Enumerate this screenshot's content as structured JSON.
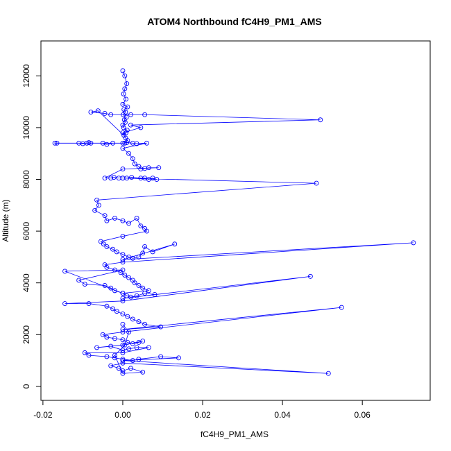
{
  "chart_data": {
    "type": "scatter",
    "title": "ATOM4 Northbound fC4H9_PM1_AMS",
    "xlabel": "fC4H9_PM1_AMS",
    "ylabel": "Altitude (m)",
    "xlim": [
      -0.0205,
      0.077
    ],
    "ylim": [
      -540,
      13350
    ],
    "x_ticks": [
      {
        "value": -0.02,
        "label": "-0.02"
      },
      {
        "value": 0.0,
        "label": "0.00"
      },
      {
        "value": 0.02,
        "label": "0.02"
      },
      {
        "value": 0.04,
        "label": "0.04"
      },
      {
        "value": 0.06,
        "label": "0.06"
      }
    ],
    "y_ticks": [
      {
        "value": 0,
        "label": "0"
      },
      {
        "value": 2000,
        "label": "2000"
      },
      {
        "value": 4000,
        "label": "4000"
      },
      {
        "value": 6000,
        "label": "6000"
      },
      {
        "value": 8000,
        "label": "8000"
      },
      {
        "value": 10000,
        "label": "10000"
      },
      {
        "value": 12000,
        "label": "12000"
      }
    ],
    "grid": false,
    "legend": "none",
    "marker": "open-circle",
    "connected": true,
    "color": "#0000ff",
    "series": [
      {
        "x": [
          0.0,
          0.0005,
          0.001,
          0.0005,
          0.0002,
          0.0008,
          0.0,
          0.0012,
          0.0003,
          0.0007,
          0.0001,
          0.0009,
          0.0004,
          0.0006,
          0.0,
          0.0002,
          0.0011,
          0.0008,
          0.0003,
          -0.0062,
          -0.008,
          -0.0045,
          -0.003,
          0.002,
          0.0055,
          0.0495,
          0.002,
          0.0045,
          0.0,
          0.0007,
          0.0012,
          0.0005,
          -0.017,
          -0.0165,
          -0.011,
          -0.01,
          -0.009,
          -0.0085,
          -0.008,
          -0.005,
          -0.004,
          -0.0025,
          0.0,
          0.001,
          0.0025,
          0.0035,
          0.006,
          0.0,
          0.0015,
          0.0025,
          0.003,
          0.004,
          0.0045,
          0.0055,
          0.0065,
          0.009,
          0.0,
          -0.0045,
          -0.003,
          -0.0022,
          -0.001,
          0.0,
          0.001,
          0.0022,
          0.0045,
          0.0055,
          0.0065,
          0.0075,
          0.0085,
          0.0,
          0.0485,
          -0.0065,
          -0.006,
          -0.007,
          -0.0045,
          -0.004,
          -0.002,
          0.0,
          0.0015,
          0.0035,
          0.0045,
          0.0055,
          0.006,
          0.0,
          -0.0055,
          -0.0048,
          -0.004,
          -0.0025,
          -0.0015,
          0.0,
          0.0015,
          0.0025,
          0.004,
          0.005,
          0.0055,
          0.0075,
          0.013,
          0.0,
          0.0728,
          0.0,
          -0.0045,
          -0.004,
          -0.002,
          -0.0005,
          0.0005,
          0.0015,
          0.0025,
          0.003,
          0.004,
          0.005,
          0.0065,
          0.0,
          -0.0145,
          0.0,
          -0.011,
          -0.0095,
          -0.0045,
          -0.003,
          -0.002,
          0.0,
          0.001,
          0.002,
          0.0035,
          0.0055,
          0.008,
          0.0,
          0.047,
          0.0,
          -0.0145,
          -0.0085,
          -0.004,
          -0.0025,
          -0.0015,
          0.0,
          0.0012,
          0.0025,
          0.004,
          0.0055,
          0.0095,
          0.0,
          0.0548,
          0.0,
          -0.005,
          -0.004,
          -0.002,
          0.0,
          0.0012,
          0.0025,
          0.004,
          0.005,
          0.0,
          -0.0065,
          -0.003,
          0.0,
          0.0015,
          0.0035,
          0.0065,
          0.0,
          -0.0095,
          -0.0085,
          -0.004,
          -0.002,
          0.0,
          0.0025,
          0.004,
          0.0095,
          0.014,
          0.0,
          0.0515,
          0.0,
          -0.003,
          -0.001,
          0.0,
          0.002,
          0.005,
          0.0,
          -0.002,
          0.0005,
          0.0015,
          0.0
        ],
        "y": [
          12200,
          12000,
          11700,
          11500,
          11300,
          11100,
          10900,
          10800,
          10700,
          10600,
          10500,
          10400,
          10300,
          10200,
          10100,
          10000,
          9900,
          9800,
          9700,
          10650,
          10600,
          10550,
          10500,
          10500,
          10500,
          10300,
          10100,
          10000,
          9800,
          9600,
          9500,
          9400,
          9400,
          9400,
          9400,
          9380,
          9400,
          9420,
          9400,
          9400,
          9350,
          9400,
          9400,
          9420,
          9400,
          9380,
          9400,
          9200,
          9000,
          8800,
          8600,
          8500,
          8400,
          8420,
          8450,
          8450,
          8400,
          8050,
          8050,
          8080,
          8050,
          8050,
          8050,
          8080,
          8050,
          8050,
          8000,
          8050,
          8000,
          8050,
          7850,
          7200,
          7000,
          6800,
          6600,
          6400,
          6500,
          6400,
          6300,
          6500,
          6200,
          6100,
          6000,
          5800,
          5600,
          5500,
          5400,
          5300,
          5200,
          5100,
          5000,
          4950,
          5000,
          5150,
          5400,
          5200,
          5500,
          4900,
          5550,
          4800,
          4700,
          4600,
          4500,
          4400,
          4300,
          4200,
          4100,
          4000,
          3900,
          3800,
          3700,
          3600,
          4450,
          4500,
          4100,
          3950,
          3900,
          3800,
          3700,
          3600,
          3500,
          3450,
          3500,
          3600,
          3550,
          3400,
          4250,
          3300,
          3200,
          3200,
          3100,
          3000,
          2900,
          2800,
          2700,
          2600,
          2500,
          2400,
          2300,
          2200,
          3050,
          2100,
          2000,
          1900,
          1850,
          1800,
          1700,
          1650,
          1700,
          1750,
          1600,
          1500,
          1550,
          1400,
          1450,
          1500,
          1500,
          1300,
          1300,
          1200,
          1150,
          1100,
          1050,
          1000,
          1050,
          1150,
          1100,
          1000,
          500,
          900,
          800,
          700,
          600,
          700,
          550,
          500,
          1200,
          1600,
          2100,
          2400
        ]
      }
    ]
  }
}
